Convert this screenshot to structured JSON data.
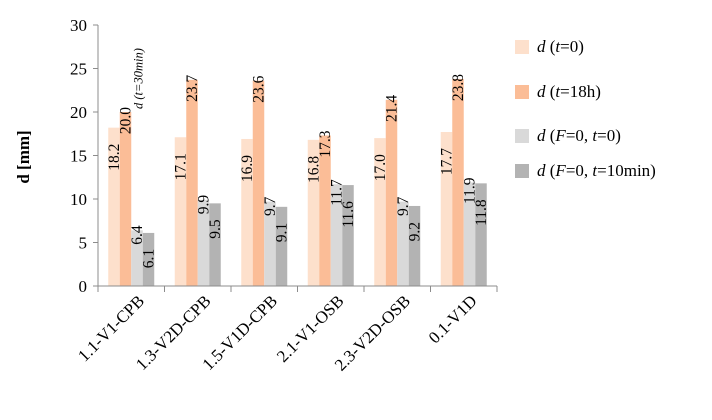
{
  "chart_data": {
    "type": "bar",
    "ylabel": "d [mm]",
    "ylim": [
      0,
      30
    ],
    "yticks": [
      "0",
      "5",
      "10",
      "15",
      "20",
      "25",
      "30"
    ],
    "grid": false,
    "legend_position": "right",
    "categories": [
      "1.1-V1-CPB",
      "1.3-V2D-CPB",
      "1.5-V1D-CPB",
      "2.1-V1-OSB",
      "2.3-V2D-OSB",
      "0.1-V1D"
    ],
    "series": [
      {
        "name": "d (t=0)",
        "name_parts": [
          {
            "t": "d",
            "i": true
          },
          {
            "t": " ("
          },
          {
            "t": "t",
            "i": true
          },
          {
            "t": "=0)"
          }
        ],
        "color": "#fde0cc",
        "values": [
          18.2,
          17.1,
          16.9,
          16.8,
          17.0,
          17.7
        ],
        "labels": [
          "18.2",
          "17.1",
          "16.9",
          "16.8",
          "17.0",
          "17.7"
        ],
        "label_pos": "inside"
      },
      {
        "name": "d (t=18h)",
        "name_parts": [
          {
            "t": "d",
            "i": true
          },
          {
            "t": " ("
          },
          {
            "t": "t",
            "i": true
          },
          {
            "t": "=18h)"
          }
        ],
        "color": "#fbbd97",
        "values": [
          20.0,
          23.7,
          23.6,
          17.3,
          21.4,
          23.8
        ],
        "labels": [
          "20.0",
          "23.7",
          "23.6",
          "17.3",
          "21.4",
          "23.8"
        ],
        "label_pos": "above"
      },
      {
        "name": "d (F=0, t=0)",
        "name_parts": [
          {
            "t": "d",
            "i": true
          },
          {
            "t": " ("
          },
          {
            "t": "F",
            "i": true
          },
          {
            "t": "=0, "
          },
          {
            "t": "t",
            "i": true
          },
          {
            "t": "=0)"
          }
        ],
        "color": "#d9d9d9",
        "values": [
          6.4,
          9.9,
          9.7,
          11.7,
          9.7,
          11.9
        ],
        "labels": [
          "6.4",
          "9.9",
          "9.7",
          "11.7",
          "9.7",
          "11.9"
        ],
        "label_pos": "above"
      },
      {
        "name": "d (F=0, t=10min)",
        "name_parts": [
          {
            "t": "d",
            "i": true
          },
          {
            "t": " ("
          },
          {
            "t": "F",
            "i": true
          },
          {
            "t": "=0, "
          },
          {
            "t": "t",
            "i": true
          },
          {
            "t": "=10min)"
          }
        ],
        "color": "#b3b3b3",
        "values": [
          6.1,
          9.5,
          9.1,
          11.6,
          9.2,
          11.8
        ],
        "labels": [
          "6.1",
          "9.5",
          "9.1",
          "11.6",
          "9.2",
          "11.8"
        ],
        "label_pos": "inside"
      }
    ],
    "annotations": [
      {
        "text": "d (t=30min)",
        "category_index": 0,
        "series_index": 1
      }
    ]
  }
}
